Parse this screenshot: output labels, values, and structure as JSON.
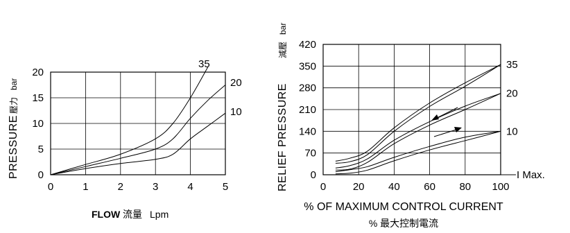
{
  "chart_data": [
    {
      "type": "line",
      "title": "",
      "xlabel": "FLOW",
      "xlabel_cjk": "流量",
      "xlabel_unit": "Lpm",
      "ylabel": "PRESSURE",
      "ylabel_cjk": "壓力",
      "ylabel_unit": "bar",
      "xlim": [
        0,
        5
      ],
      "ylim": [
        0,
        20
      ],
      "xticks": [
        "0",
        "1",
        "2",
        "3",
        "4",
        "5"
      ],
      "yticks": [
        "0",
        "5",
        "10",
        "15",
        "20"
      ],
      "grid": true,
      "series": [
        {
          "name": "35",
          "x": [
            0,
            1,
            2,
            3,
            3.5,
            4,
            4.5
          ],
          "y": [
            0,
            2,
            4,
            7,
            10,
            15,
            21
          ]
        },
        {
          "name": "20",
          "x": [
            0,
            1,
            2,
            3,
            3.5,
            4,
            4.5,
            5
          ],
          "y": [
            0,
            1.6,
            3.2,
            5,
            7,
            11,
            14.5,
            17.5
          ]
        },
        {
          "name": "10",
          "x": [
            0,
            1,
            2,
            3,
            3.5,
            4,
            4.5,
            5
          ],
          "y": [
            0,
            1.2,
            2.2,
            3,
            4,
            7,
            9.5,
            12
          ]
        }
      ]
    },
    {
      "type": "line",
      "title": "",
      "xlabel": "% OF MAXIMUM CONTROL CURRENT",
      "xlabel_cjk": "% 最大控制電流",
      "xlabel_suffix": "I Max.",
      "ylabel": "RELIEF PRESSURE",
      "ylabel_cjk": "減壓",
      "ylabel_unit": "bar",
      "xlim": [
        0,
        100
      ],
      "ylim": [
        0,
        420
      ],
      "xticks": [
        "0",
        "20",
        "40",
        "60",
        "80",
        "100"
      ],
      "yticks": [
        "0",
        "70",
        "140",
        "210",
        "280",
        "350",
        "420"
      ],
      "grid": true,
      "series": [
        {
          "name": "35",
          "x": [
            7,
            15,
            25,
            40,
            60,
            80,
            100
          ],
          "y": [
            37,
            42,
            65,
            140,
            220,
            285,
            355
          ]
        },
        {
          "name": "20",
          "x": [
            7,
            15,
            25,
            40,
            60,
            80,
            100
          ],
          "y": [
            15,
            18,
            40,
            100,
            160,
            210,
            262
          ]
        },
        {
          "name": "10",
          "x": [
            7,
            15,
            25,
            40,
            60,
            80,
            100
          ],
          "y": [
            3,
            5,
            15,
            45,
            80,
            110,
            140
          ]
        }
      ]
    }
  ]
}
